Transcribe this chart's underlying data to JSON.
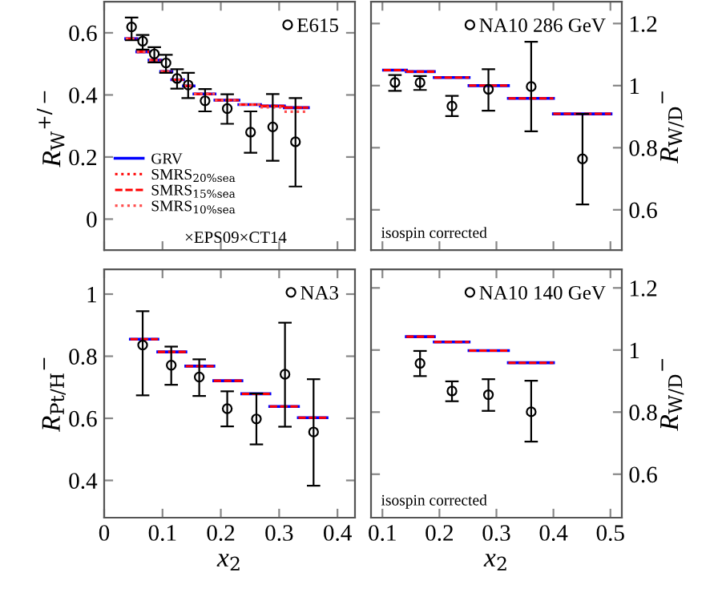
{
  "chart_data": [
    {
      "type": "scatter",
      "xlim": [
        0,
        0.43
      ],
      "ylim": [
        -0.1,
        0.7
      ],
      "xticks": [
        0,
        0.1,
        0.2,
        0.3,
        0.4
      ],
      "yticks": [
        0,
        0.2,
        0.4,
        0.6
      ],
      "tick_labels": "y",
      "ylabel": "R$_{W}$$^{+/−}$",
      "legend": "top right",
      "annotations": [
        "×EPS09×CT14"
      ],
      "series": [
        {
          "name": "E615",
          "type": "scatter",
          "marker": "circle",
          "color": "#000000",
          "x": [
            0.047,
            0.066,
            0.086,
            0.106,
            0.125,
            0.144,
            0.173,
            0.211,
            0.251,
            0.289,
            0.328
          ],
          "values": [
            0.619,
            0.573,
            0.532,
            0.503,
            0.453,
            0.432,
            0.381,
            0.356,
            0.28,
            0.297,
            0.249
          ],
          "errors": [
            [
              0.576,
              0.649
            ],
            [
              0.546,
              0.593
            ],
            [
              0.505,
              0.554
            ],
            [
              0.471,
              0.529
            ],
            [
              0.42,
              0.483
            ],
            [
              0.39,
              0.471
            ],
            [
              0.347,
              0.419
            ],
            [
              0.307,
              0.402
            ],
            [
              0.214,
              0.347
            ],
            [
              0.188,
              0.403
            ],
            [
              0.105,
              0.39
            ]
          ]
        },
        {
          "name": "GRV",
          "type": "line",
          "marker": "none",
          "line_style": "solid",
          "color": "#0000ff",
          "x": [
            0.037,
            0.056,
            null,
            0.056,
            0.077,
            null,
            0.077,
            0.097,
            null,
            0.097,
            0.116,
            null,
            0.116,
            0.136,
            null,
            0.136,
            0.154,
            null,
            0.154,
            0.19,
            null,
            0.19,
            0.231,
            null,
            0.231,
            0.268,
            null,
            0.268,
            0.309,
            null,
            0.309,
            0.35
          ],
          "values": [
            0.581,
            0.581,
            null,
            0.539,
            0.539,
            null,
            0.512,
            0.512,
            null,
            0.475,
            0.475,
            null,
            0.449,
            0.449,
            null,
            0.429,
            0.429,
            null,
            0.403,
            0.403,
            null,
            0.383,
            0.383,
            null,
            0.369,
            0.369,
            null,
            0.364,
            0.364,
            null,
            0.359,
            0.359
          ]
        },
        {
          "name": "SMRS$_{20%sea}$",
          "type": "line",
          "marker": "none",
          "line_style": "dotted",
          "color": "#ff0000",
          "x": [
            0.037,
            0.056,
            null,
            0.056,
            0.077,
            null,
            0.077,
            0.097,
            null,
            0.097,
            0.116,
            null,
            0.116,
            0.136,
            null,
            0.136,
            0.154,
            null,
            0.154,
            0.19,
            null,
            0.19,
            0.231,
            null,
            0.231,
            0.268,
            null,
            0.268,
            0.309,
            null,
            0.309,
            0.35
          ],
          "values": [
            0.581,
            0.581,
            null,
            0.539,
            0.539,
            null,
            0.512,
            0.512,
            null,
            0.475,
            0.475,
            null,
            0.449,
            0.449,
            null,
            0.429,
            0.429,
            null,
            0.403,
            0.403,
            null,
            0.383,
            0.383,
            null,
            0.369,
            0.369,
            null,
            0.364,
            0.364,
            null,
            0.359,
            0.359
          ]
        },
        {
          "name": "SMRS$_{15%sea}$",
          "type": "line",
          "marker": "none",
          "line_style": "dashed",
          "color": "#ff0000",
          "x": [
            0.037,
            0.056,
            null,
            0.056,
            0.077,
            null,
            0.077,
            0.097,
            null,
            0.097,
            0.116,
            null,
            0.116,
            0.136,
            null,
            0.136,
            0.154,
            null,
            0.154,
            0.19,
            null,
            0.19,
            0.231,
            null,
            0.231,
            0.268,
            null,
            0.268,
            0.309,
            null,
            0.309,
            0.35
          ],
          "values": [
            0.581,
            0.581,
            null,
            0.539,
            0.539,
            null,
            0.512,
            0.512,
            null,
            0.475,
            0.475,
            null,
            0.449,
            0.449,
            null,
            0.429,
            0.429,
            null,
            0.403,
            0.403,
            null,
            0.383,
            0.383,
            null,
            0.369,
            0.369,
            null,
            0.364,
            0.364,
            null,
            0.359,
            0.359
          ]
        },
        {
          "name": "SMRS$_{10%sea}$",
          "type": "line",
          "marker": "none",
          "line_style": "dotted",
          "color": "#ff5050",
          "x": [
            0.037,
            0.056,
            null,
            0.056,
            0.077,
            null,
            0.077,
            0.097,
            null,
            0.097,
            0.116,
            null,
            0.116,
            0.136,
            null,
            0.136,
            0.154,
            null,
            0.154,
            0.19,
            null,
            0.19,
            0.231,
            null,
            0.231,
            0.268,
            null,
            0.268,
            0.309,
            null,
            0.309,
            0.35
          ],
          "values": [
            0.581,
            0.581,
            null,
            0.539,
            0.539,
            null,
            0.512,
            0.512,
            null,
            0.475,
            0.475,
            null,
            0.449,
            0.449,
            null,
            0.429,
            0.429,
            null,
            0.403,
            0.403,
            null,
            0.383,
            0.383,
            null,
            0.369,
            0.369,
            null,
            0.36,
            0.36,
            null,
            0.346,
            0.346
          ]
        }
      ]
    },
    {
      "type": "scatter",
      "xlim": [
        0.08,
        0.52
      ],
      "ylim": [
        0.47,
        1.27
      ],
      "xticks": [
        0.1,
        0.2,
        0.3,
        0.4,
        0.5
      ],
      "yticks": [
        0.6,
        0.8,
        1,
        1.2
      ],
      "tick_labels": "y",
      "ylabel": "R$_{W/D}$$^{−}$",
      "legend": "top right",
      "annotations": [
        "isospin corrected"
      ],
      "series": [
        {
          "name": "NA10 286 GeV",
          "type": "scatter",
          "marker": "circle",
          "color": "#000000",
          "x": [
            0.122,
            0.166,
            0.222,
            0.286,
            0.361,
            0.451
          ],
          "values": [
            1.01,
            1.01,
            0.934,
            0.988,
            0.997,
            0.764
          ],
          "errors": [
            [
              0.983,
              1.034
            ],
            [
              0.986,
              1.031
            ],
            [
              0.902,
              0.967
            ],
            [
              0.919,
              1.053
            ],
            [
              0.853,
              1.141
            ],
            [
              0.617,
              0.909
            ]
          ]
        },
        {
          "type": "line",
          "marker": "none",
          "line_style": "solid",
          "color": "#0000ff",
          "x": [
            0.102,
            0.142,
            null,
            0.142,
            0.191,
            null,
            0.191,
            0.252,
            null,
            0.252,
            0.321,
            null,
            0.321,
            0.4,
            null,
            0.4,
            0.501
          ],
          "values": [
            1.05,
            1.05,
            null,
            1.045,
            1.045,
            null,
            1.026,
            1.026,
            null,
            1.0,
            1.0,
            null,
            0.959,
            0.959,
            null,
            0.909,
            0.909
          ]
        },
        {
          "type": "line",
          "marker": "none",
          "line_style": "dashed",
          "color": "#ff0000",
          "x": [
            0.102,
            0.142,
            null,
            0.142,
            0.191,
            null,
            0.191,
            0.252,
            null,
            0.252,
            0.321,
            null,
            0.321,
            0.4,
            null,
            0.4,
            0.501
          ],
          "values": [
            1.05,
            1.05,
            null,
            1.045,
            1.045,
            null,
            1.026,
            1.026,
            null,
            1.0,
            1.0,
            null,
            0.959,
            0.959,
            null,
            0.909,
            0.909
          ]
        }
      ]
    },
    {
      "type": "scatter",
      "xlim": [
        0,
        0.43
      ],
      "ylim": [
        0.28,
        1.08
      ],
      "xticks": [
        0,
        0.1,
        0.2,
        0.3,
        0.4
      ],
      "yticks": [
        0.4,
        0.6,
        0.8,
        1
      ],
      "xlabel": "x$_{2}$",
      "ylabel": "R$_{Pt/H}$$^{−}$",
      "legend": "top right",
      "series": [
        {
          "name": "NA3",
          "type": "scatter",
          "marker": "circle",
          "color": "#000000",
          "x": [
            0.066,
            0.115,
            0.163,
            0.211,
            0.261,
            0.31,
            0.359
          ],
          "values": [
            0.836,
            0.771,
            0.733,
            0.631,
            0.598,
            0.742,
            0.556
          ],
          "errors": [
            [
              0.674,
              0.945
            ],
            [
              0.708,
              0.831
            ],
            [
              0.672,
              0.79
            ],
            [
              0.574,
              0.687
            ],
            [
              0.516,
              0.68
            ],
            [
              0.573,
              0.908
            ],
            [
              0.383,
              0.726
            ]
          ]
        },
        {
          "type": "line",
          "marker": "none",
          "line_style": "solid",
          "color": "#0000ff",
          "x": [
            0.045,
            0.092,
            null,
            0.092,
            0.14,
            null,
            0.14,
            0.188,
            null,
            0.188,
            0.236,
            null,
            0.236,
            0.284,
            null,
            0.284,
            0.333,
            null,
            0.333,
            0.382
          ],
          "values": [
            0.855,
            0.855,
            null,
            0.814,
            0.814,
            null,
            0.768,
            0.768,
            null,
            0.721,
            0.721,
            null,
            0.679,
            0.679,
            null,
            0.638,
            0.638,
            null,
            0.602,
            0.602
          ]
        },
        {
          "type": "line",
          "marker": "none",
          "line_style": "dashed",
          "color": "#ff0000",
          "x": [
            0.045,
            0.092,
            null,
            0.092,
            0.14,
            null,
            0.14,
            0.188,
            null,
            0.188,
            0.236,
            null,
            0.236,
            0.284,
            null,
            0.284,
            0.333,
            null,
            0.333,
            0.382
          ],
          "values": [
            0.855,
            0.855,
            null,
            0.814,
            0.814,
            null,
            0.768,
            0.768,
            null,
            0.721,
            0.721,
            null,
            0.679,
            0.679,
            null,
            0.638,
            0.638,
            null,
            0.602,
            0.602
          ]
        }
      ]
    },
    {
      "type": "scatter",
      "xlim": [
        0.08,
        0.52
      ],
      "ylim": [
        0.46,
        1.26
      ],
      "xticks": [
        0.1,
        0.2,
        0.3,
        0.4,
        0.5
      ],
      "yticks": [
        0.6,
        0.8,
        1,
        1.2
      ],
      "xlabel": "x$_{2}$",
      "ylabel": "R$_{W/D}$$^{−}$",
      "legend": "top right",
      "annotations": [
        "isospin corrected"
      ],
      "series": [
        {
          "name": "NA10 140 GeV",
          "type": "scatter",
          "marker": "circle",
          "color": "#000000",
          "x": [
            0.166,
            0.222,
            0.286,
            0.361
          ],
          "values": [
            0.957,
            0.868,
            0.856,
            0.801
          ],
          "errors": [
            [
              0.916,
              0.997
            ],
            [
              0.835,
              0.899
            ],
            [
              0.804,
              0.906
            ],
            [
              0.705,
              0.901
            ]
          ]
        },
        {
          "type": "line",
          "marker": "none",
          "line_style": "solid",
          "color": "#0000ff",
          "x": [
            0.142,
            0.191,
            null,
            0.191,
            0.252,
            null,
            0.252,
            0.321,
            null,
            0.321,
            0.4
          ],
          "values": [
            1.043,
            1.043,
            null,
            1.026,
            1.026,
            null,
            0.998,
            0.998,
            null,
            0.959,
            0.959
          ]
        },
        {
          "type": "line",
          "marker": "none",
          "line_style": "dashed",
          "color": "#ff0000",
          "x": [
            0.142,
            0.191,
            null,
            0.191,
            0.252,
            null,
            0.252,
            0.321,
            null,
            0.321,
            0.4
          ],
          "values": [
            1.043,
            1.043,
            null,
            1.026,
            1.026,
            null,
            0.998,
            0.998,
            null,
            0.959,
            0.959
          ]
        }
      ]
    }
  ]
}
